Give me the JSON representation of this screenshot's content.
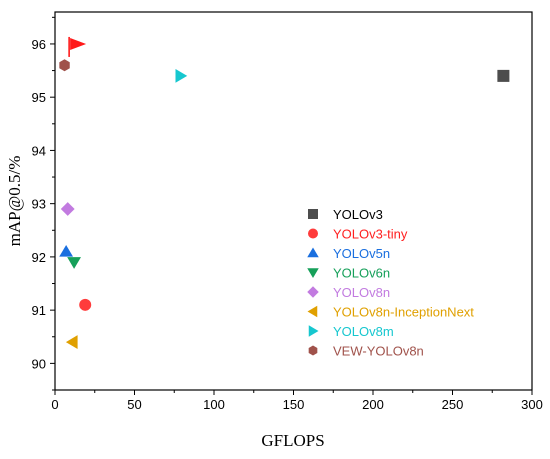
{
  "chart_data": {
    "type": "scatter",
    "xlabel": "GFLOPS",
    "ylabel": "mAP@0.5/%",
    "xlim": [
      0,
      300
    ],
    "ylim": [
      89.5,
      96.6
    ],
    "xticks": [
      "0",
      "50",
      "100",
      "150",
      "200",
      "250",
      "300"
    ],
    "yticks": [
      "90",
      "91",
      "92",
      "93",
      "94",
      "95",
      "96"
    ],
    "grid": false,
    "legend_position": "bottom-right",
    "series": [
      {
        "name": "YOLOv3",
        "marker": "square",
        "color": "#4d4d4d",
        "label_color": "#000000",
        "x": 282,
        "y": 95.4
      },
      {
        "name": "YOLOv3-tiny",
        "marker": "circle",
        "color": "#ff3b3b",
        "label_color": "#ff2020",
        "x": 19,
        "y": 91.1
      },
      {
        "name": "YOLOv5n",
        "marker": "triangle-up",
        "color": "#1a6fdf",
        "label_color": "#1a6fdf",
        "x": 7,
        "y": 92.1
      },
      {
        "name": "YOLOv6n",
        "marker": "triangle-down",
        "color": "#16a05a",
        "label_color": "#16a05a",
        "x": 12,
        "y": 91.9
      },
      {
        "name": "YOLOv8n",
        "marker": "diamond",
        "color": "#c27be0",
        "label_color": "#c27be0",
        "x": 8,
        "y": 92.9
      },
      {
        "name": "YOLOv8n-InceptionNext",
        "marker": "triangle-left",
        "color": "#e0a000",
        "label_color": "#e0a000",
        "x": 11,
        "y": 90.4
      },
      {
        "name": "YOLOv8m",
        "marker": "triangle-right",
        "color": "#16c7cf",
        "label_color": "#16c7cf",
        "x": 79,
        "y": 95.4
      },
      {
        "name": "VEW-YOLOv8n",
        "marker": "hexagon",
        "color": "#a0524b",
        "label_color": "#a0524b",
        "x": 6,
        "y": 95.6
      }
    ],
    "annotations": [
      {
        "type": "flag",
        "color": "#ff1a1a",
        "x": 7,
        "y": 96.0
      }
    ]
  }
}
